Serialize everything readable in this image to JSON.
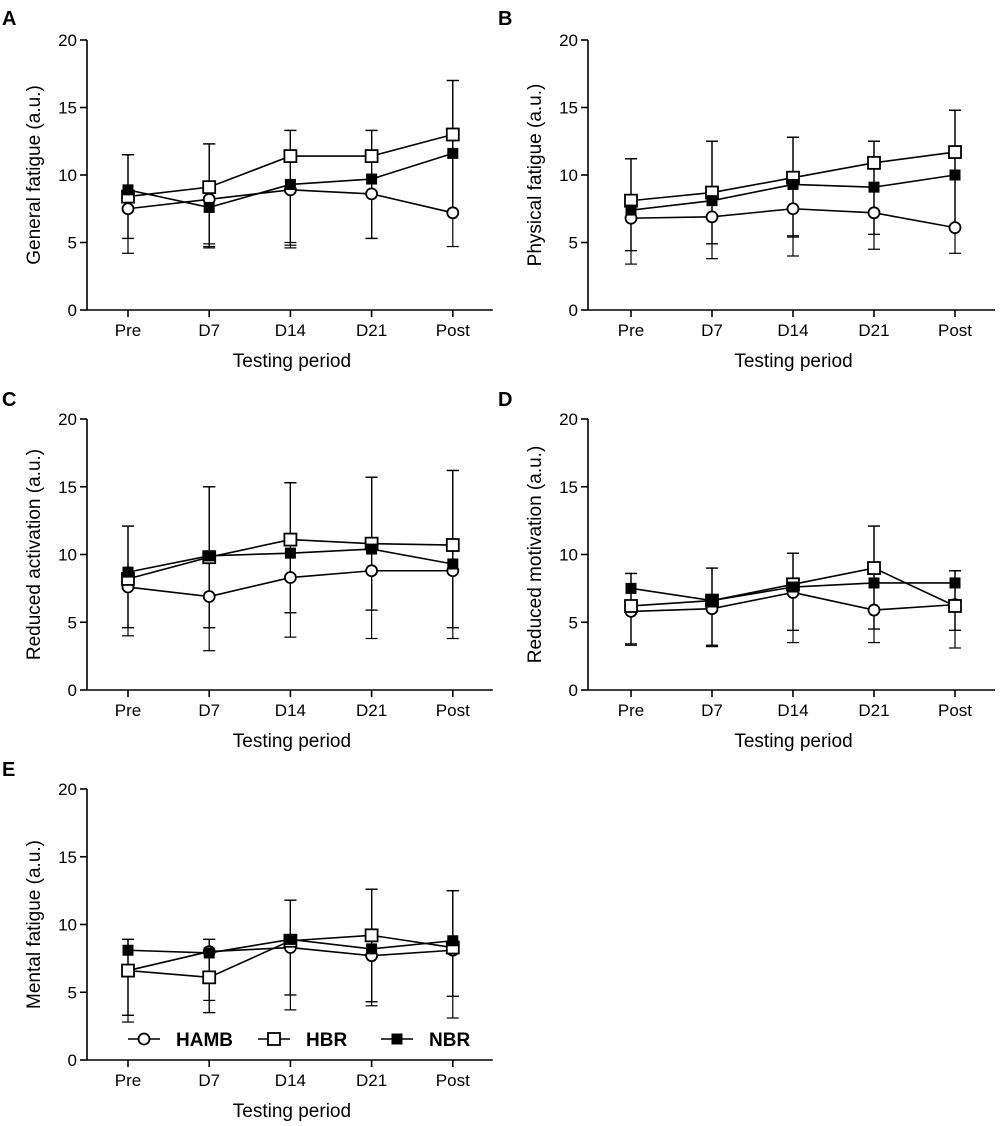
{
  "chart_data": [
    {
      "panel": "A",
      "type": "line",
      "ylabel": "General fatigue (a.u.)",
      "xlabel": "Testing period",
      "categories": [
        "Pre",
        "D7",
        "D14",
        "D21",
        "Post"
      ],
      "ylim": [
        0,
        20
      ],
      "yticks": [
        "0",
        "5",
        "10",
        "15",
        "20"
      ],
      "series": [
        {
          "name": "HAMB",
          "marker": "open-circle",
          "values": [
            7.5,
            8.2,
            8.9,
            8.6,
            7.2
          ],
          "err_low": [
            4.2,
            4.6,
            4.6,
            5.3,
            4.7
          ],
          "err_high": [
            11.5,
            12.3,
            13.3,
            13.3,
            17.0
          ]
        },
        {
          "name": "HBR",
          "marker": "open-square",
          "values": [
            8.4,
            9.1,
            11.4,
            11.4,
            13.0
          ],
          "err_low": [
            5.3,
            4.9,
            5.0,
            5.3,
            7.2
          ],
          "err_high": [
            11.5,
            12.3,
            13.3,
            13.3,
            17.0
          ]
        },
        {
          "name": "NBR",
          "marker": "filled-square",
          "values": [
            8.9,
            7.6,
            9.3,
            9.7,
            11.6
          ],
          "err_low": [
            5.3,
            4.7,
            4.8,
            5.3,
            7.2
          ],
          "err_high": [
            11.5,
            12.3,
            13.3,
            13.3,
            17.0
          ]
        }
      ]
    },
    {
      "panel": "B",
      "type": "line",
      "ylabel": "Physical fatigue (a.u.)",
      "xlabel": "Testing period",
      "categories": [
        "Pre",
        "D7",
        "D14",
        "D21",
        "Post"
      ],
      "ylim": [
        0,
        20
      ],
      "yticks": [
        "0",
        "5",
        "10",
        "15",
        "20"
      ],
      "series": [
        {
          "name": "HAMB",
          "marker": "open-circle",
          "values": [
            6.8,
            6.9,
            7.5,
            7.2,
            6.1
          ],
          "err_low": [
            3.4,
            3.8,
            4.0,
            4.5,
            4.2
          ],
          "err_high": [
            11.2,
            12.5,
            12.8,
            12.5,
            14.8
          ]
        },
        {
          "name": "HBR",
          "marker": "open-square",
          "values": [
            8.1,
            8.7,
            9.8,
            10.9,
            11.7
          ],
          "err_low": [
            4.4,
            4.9,
            5.5,
            5.6,
            6.1
          ],
          "err_high": [
            11.2,
            12.5,
            12.8,
            12.5,
            14.8
          ]
        },
        {
          "name": "NBR",
          "marker": "filled-square",
          "values": [
            7.4,
            8.1,
            9.3,
            9.1,
            10.0
          ],
          "err_low": [
            4.4,
            4.9,
            5.4,
            5.6,
            6.1
          ],
          "err_high": [
            11.2,
            12.5,
            12.8,
            12.5,
            14.8
          ]
        }
      ]
    },
    {
      "panel": "C",
      "type": "line",
      "ylabel": "Reduced activation (a.u.)",
      "xlabel": "Testing period",
      "categories": [
        "Pre",
        "D7",
        "D14",
        "D21",
        "Post"
      ],
      "ylim": [
        0,
        20
      ],
      "yticks": [
        "0",
        "5",
        "10",
        "15",
        "20"
      ],
      "series": [
        {
          "name": "HAMB",
          "marker": "open-circle",
          "values": [
            7.6,
            6.9,
            8.3,
            8.8,
            8.8
          ],
          "err_low": [
            4.0,
            2.9,
            3.9,
            3.8,
            3.8
          ],
          "err_high": [
            12.1,
            15.0,
            15.3,
            15.7,
            16.2
          ]
        },
        {
          "name": "HBR",
          "marker": "open-square",
          "values": [
            8.2,
            9.8,
            11.1,
            10.8,
            10.7
          ],
          "err_low": [
            4.6,
            4.6,
            5.7,
            5.9,
            4.6
          ],
          "err_high": [
            12.1,
            15.0,
            15.3,
            15.7,
            16.2
          ]
        },
        {
          "name": "NBR",
          "marker": "filled-square",
          "values": [
            8.7,
            9.9,
            10.1,
            10.4,
            9.3
          ],
          "err_low": [
            4.6,
            4.6,
            5.7,
            5.9,
            4.6
          ],
          "err_high": [
            12.1,
            15.0,
            15.3,
            15.7,
            16.2
          ]
        }
      ]
    },
    {
      "panel": "D",
      "type": "line",
      "ylabel": "Reduced motivation (a.u.)",
      "xlabel": "Testing period",
      "categories": [
        "Pre",
        "D7",
        "D14",
        "D21",
        "Post"
      ],
      "ylim": [
        0,
        20
      ],
      "yticks": [
        "0",
        "5",
        "10",
        "15",
        "20"
      ],
      "series": [
        {
          "name": "HAMB",
          "marker": "open-circle",
          "values": [
            5.8,
            6.0,
            7.2,
            5.9,
            6.3
          ],
          "err_low": [
            3.3,
            3.2,
            3.5,
            3.5,
            3.1
          ],
          "err_high": [
            8.6,
            9.0,
            10.1,
            12.1,
            8.8
          ]
        },
        {
          "name": "HBR",
          "marker": "open-square",
          "values": [
            6.2,
            6.6,
            7.8,
            9.0,
            6.2
          ],
          "err_low": [
            3.4,
            3.3,
            4.4,
            4.5,
            4.4
          ],
          "err_high": [
            8.6,
            9.0,
            10.1,
            12.1,
            8.8
          ]
        },
        {
          "name": "NBR",
          "marker": "filled-square",
          "values": [
            7.5,
            6.6,
            7.6,
            7.9,
            7.9
          ],
          "err_low": [
            3.4,
            3.3,
            4.4,
            4.5,
            4.4
          ],
          "err_high": [
            8.6,
            9.0,
            10.1,
            12.1,
            8.8
          ]
        }
      ]
    },
    {
      "panel": "E",
      "type": "line",
      "ylabel": "Mental fatigue (a.u.)",
      "xlabel": "Testing period",
      "categories": [
        "Pre",
        "D7",
        "D14",
        "D21",
        "Post"
      ],
      "ylim": [
        0,
        20
      ],
      "yticks": [
        "0",
        "5",
        "10",
        "15",
        "20"
      ],
      "series": [
        {
          "name": "HAMB",
          "marker": "open-circle",
          "values": [
            6.6,
            8.0,
            8.3,
            7.7,
            8.1
          ],
          "err_low": [
            2.8,
            3.5,
            3.7,
            4.0,
            3.1
          ],
          "err_high": [
            8.9,
            8.9,
            11.8,
            12.6,
            12.5
          ]
        },
        {
          "name": "HBR",
          "marker": "open-square",
          "values": [
            6.6,
            6.1,
            8.8,
            9.2,
            8.3
          ],
          "err_low": [
            3.3,
            3.5,
            4.8,
            4.3,
            4.7
          ],
          "err_high": [
            8.9,
            8.9,
            11.8,
            12.6,
            12.5
          ]
        },
        {
          "name": "NBR",
          "marker": "filled-square",
          "values": [
            8.1,
            7.9,
            8.9,
            8.2,
            8.8
          ],
          "err_low": [
            3.3,
            4.4,
            4.8,
            4.3,
            4.7
          ],
          "err_high": [
            8.9,
            8.9,
            11.8,
            12.6,
            12.5
          ]
        }
      ]
    }
  ],
  "legend": {
    "location": "bottom-left of panel E",
    "entries": [
      {
        "name": "HAMB",
        "marker": "open-circle"
      },
      {
        "name": "HBR",
        "marker": "open-square"
      },
      {
        "name": "NBR",
        "marker": "filled-square"
      }
    ]
  }
}
